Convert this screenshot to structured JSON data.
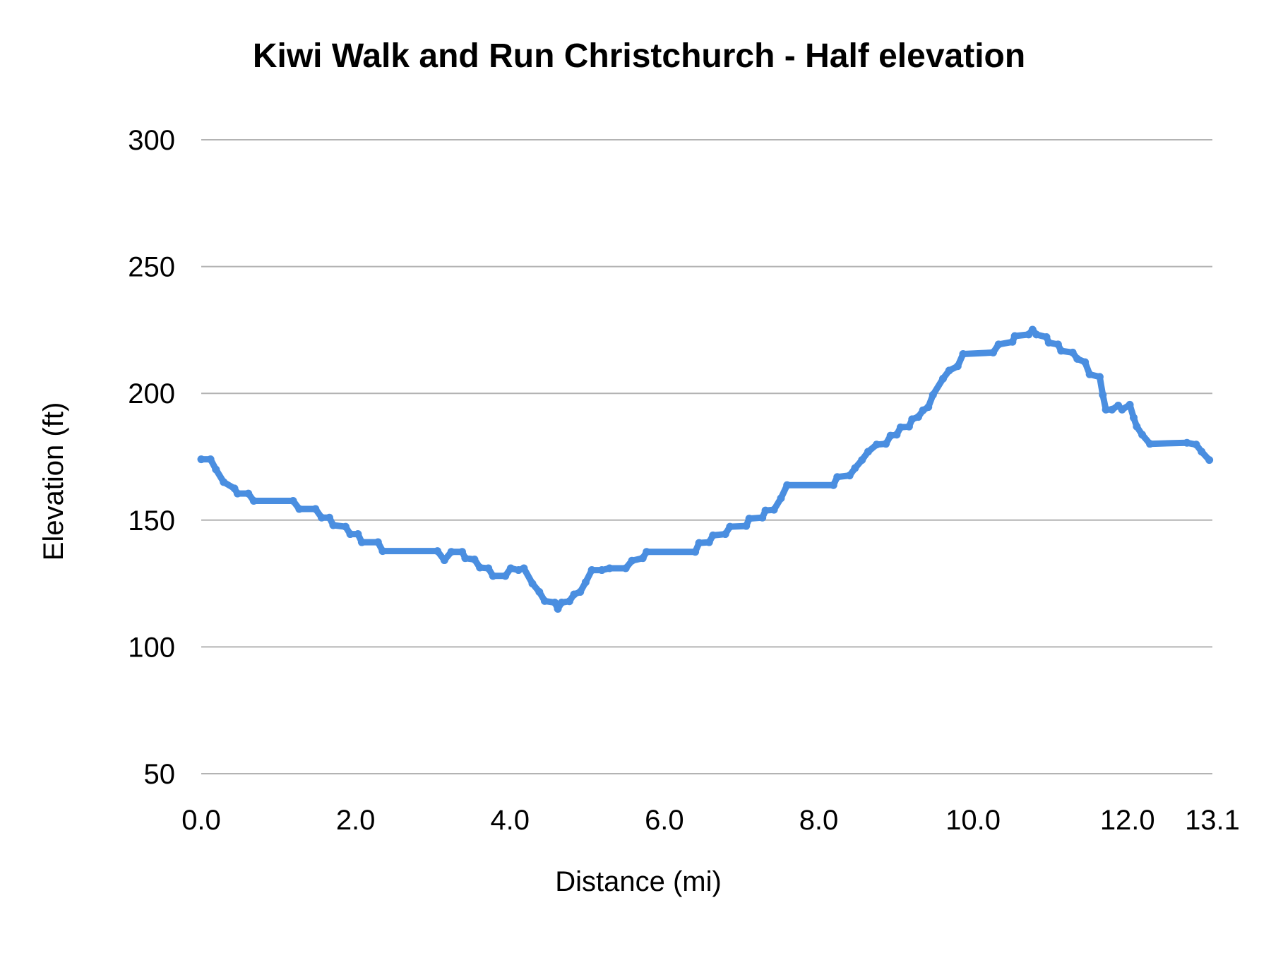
{
  "chart_data": {
    "type": "line",
    "title": "Kiwi Walk and Run Christchurch - Half  elevation",
    "xlabel": "Distance (mi)",
    "ylabel": "Elevation (ft)",
    "xlim": [
      0,
      13.1
    ],
    "ylim": [
      50,
      300
    ],
    "x_ticks": [
      "0.0",
      "2.0",
      "4.0",
      "6.0",
      "8.0",
      "10.0",
      "12.0",
      "13.1"
    ],
    "x_tick_values": [
      0,
      2,
      4,
      6,
      8,
      10,
      12,
      13.1
    ],
    "y_ticks": [
      "50",
      "100",
      "150",
      "200",
      "250",
      "300"
    ],
    "y_tick_values": [
      50,
      100,
      150,
      200,
      250,
      300
    ],
    "grid": "horizontal",
    "legend": "none",
    "colors": {
      "line": "#4a8ee0",
      "grid": "#b3b3b3"
    },
    "series": [
      {
        "x": [
          0,
          0.12,
          0.19,
          0.29,
          0.43,
          0.47,
          0.61,
          0.68,
          1.19,
          1.27,
          1.48,
          1.56,
          1.66,
          1.71,
          1.87,
          1.93,
          2.03,
          2.08,
          2.29,
          2.35,
          3.06,
          3.15,
          3.24,
          3.38,
          3.42,
          3.54,
          3.61,
          3.72,
          3.78,
          3.94,
          4.01,
          4.11,
          4.18,
          4.29,
          4.38,
          4.45,
          4.58,
          4.62,
          4.67,
          4.77,
          4.83,
          4.91,
          4.98,
          5.06,
          5.19,
          5.29,
          5.5,
          5.58,
          5.72,
          5.77,
          6.4,
          6.45,
          6.58,
          6.63,
          6.79,
          6.85,
          7.06,
          7.1,
          7.27,
          7.31,
          7.42,
          7.51,
          7.59,
          8.19,
          8.24,
          8.4,
          8.47,
          8.56,
          8.64,
          8.75,
          8.87,
          8.93,
          9.01,
          9.06,
          9.17,
          9.21,
          9.29,
          9.35,
          9.42,
          9.48,
          9.61,
          9.69,
          9.8,
          9.87,
          10.26,
          10.33,
          10.51,
          10.54,
          10.72,
          10.77,
          10.82,
          10.95,
          10.98,
          11.1,
          11.14,
          11.29,
          11.35,
          11.45,
          11.51,
          11.64,
          11.68,
          11.72,
          11.8,
          11.88,
          11.93,
          12.03,
          12.08,
          12.12,
          12.19,
          12.29,
          12.77,
          12.89,
          12.96,
          13.06
        ],
        "y": [
          174,
          174,
          170,
          165,
          162.5,
          160.5,
          160.5,
          157.6,
          157.6,
          154.4,
          154.4,
          151,
          151,
          148,
          147.4,
          144.5,
          144.5,
          141.3,
          141.3,
          137.8,
          137.8,
          134.2,
          137.5,
          137.5,
          135,
          134.5,
          131.3,
          131,
          128,
          128,
          131,
          130.3,
          131,
          125,
          121.7,
          118.1,
          117.5,
          115,
          117.5,
          118,
          120.7,
          121.7,
          125.5,
          130.3,
          130.3,
          131,
          131,
          134,
          135,
          137.5,
          137.5,
          141,
          141.3,
          144,
          144.5,
          147.4,
          147.7,
          150.6,
          151,
          153.8,
          154.1,
          158.6,
          163.8,
          163.8,
          167,
          167.6,
          170.5,
          173.7,
          177,
          179.8,
          180.1,
          183.3,
          183.7,
          186.6,
          186.9,
          189.8,
          190.7,
          193.3,
          194.6,
          199.4,
          205.8,
          209,
          210.7,
          215.5,
          216.1,
          219.3,
          220.3,
          222.6,
          223.2,
          225.1,
          223.2,
          222.2,
          220,
          219.3,
          216.8,
          216.1,
          213.6,
          212.3,
          207.5,
          206.5,
          199.4,
          193.6,
          193.6,
          195.2,
          193.6,
          195.5,
          190.4,
          186.9,
          183.7,
          180.1,
          180.5,
          179.8,
          177,
          173.7
        ]
      }
    ]
  }
}
